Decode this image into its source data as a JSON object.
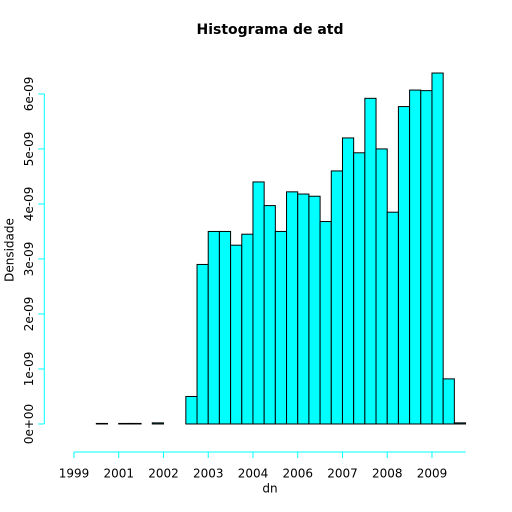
{
  "chart_data": {
    "type": "histogram",
    "title": "Histograma de atd",
    "xlabel": "dn",
    "ylabel": "Densidade",
    "bins": [
      940000000,
      950000000,
      960000000,
      970000000,
      980000000,
      990000000,
      1000000000,
      1010000000,
      1020000000,
      1030000000,
      1040000000,
      1050000000,
      1060000000,
      1070000000,
      1080000000,
      1090000000,
      1100000000,
      1110000000,
      1120000000,
      1130000000,
      1140000000,
      1150000000,
      1160000000,
      1170000000,
      1180000000,
      1190000000,
      1200000000,
      1210000000,
      1220000000,
      1230000000,
      1240000000,
      1250000000,
      1260000000,
      1270000000,
      1280000000,
      1290000000
    ],
    "values": [
      0,
      0,
      1e-11,
      0,
      1e-11,
      1e-11,
      0,
      2e-11,
      0,
      0,
      5e-10,
      2.9e-09,
      3.5e-09,
      3.5e-09,
      3.25e-09,
      3.45e-09,
      4.4e-09,
      3.97e-09,
      3.5e-09,
      4.22e-09,
      4.18e-09,
      4.14e-09,
      3.68e-09,
      4.6e-09,
      5.2e-09,
      4.93e-09,
      5.92e-09,
      5e-09,
      3.85e-09,
      5.77e-09,
      6.07e-09,
      6.06e-09,
      6.38e-09,
      8.2e-10,
      2e-11
    ],
    "color": "#00ffff",
    "edge_color": "#000000",
    "axis_color": "#00ffff",
    "xlim": [
      926000000,
      1304000000
    ],
    "xticks": [
      {
        "value": 940000000,
        "label": "1999"
      },
      {
        "value": 980000000,
        "label": "2001"
      },
      {
        "value": 1020000000,
        "label": "2002"
      },
      {
        "value": 1060000000,
        "label": "2003"
      },
      {
        "value": 1100000000,
        "label": "2004"
      },
      {
        "value": 1140000000,
        "label": "2006"
      },
      {
        "value": 1180000000,
        "label": "2007"
      },
      {
        "value": 1220000000,
        "label": "2008"
      },
      {
        "value": 1260000000,
        "label": "2009"
      }
    ],
    "ylim": [
      -2.55e-10,
      6.635e-09
    ],
    "yticks": [
      {
        "value": 0,
        "label": "0e+00"
      },
      {
        "value": 1e-09,
        "label": "1e-09"
      },
      {
        "value": 2e-09,
        "label": "2e-09"
      },
      {
        "value": 3e-09,
        "label": "3e-09"
      },
      {
        "value": 4e-09,
        "label": "4e-09"
      },
      {
        "value": 5e-09,
        "label": "5e-09"
      },
      {
        "value": 6e-09,
        "label": "6e-09"
      }
    ]
  }
}
